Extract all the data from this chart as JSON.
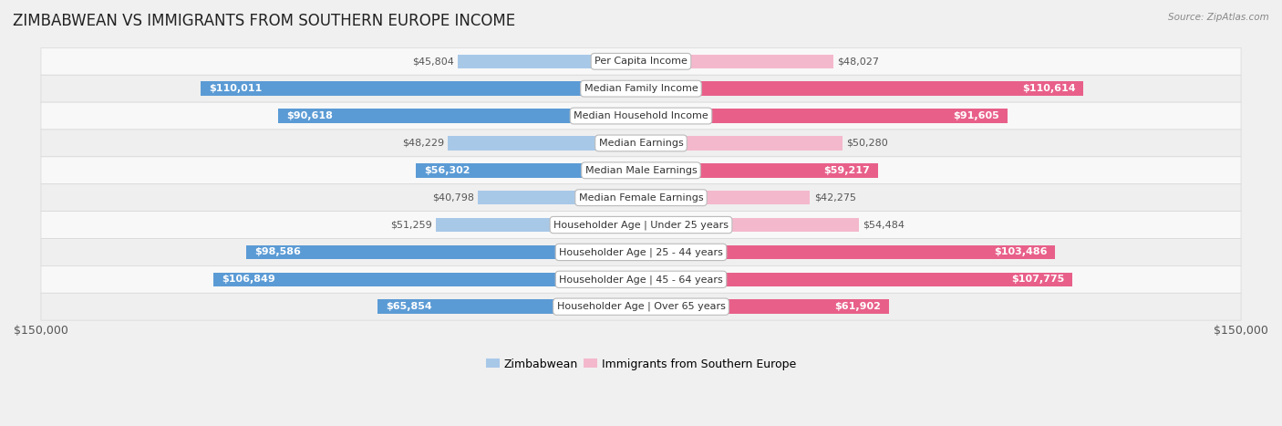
{
  "title": "ZIMBABWEAN VS IMMIGRANTS FROM SOUTHERN EUROPE INCOME",
  "source": "Source: ZipAtlas.com",
  "categories": [
    "Per Capita Income",
    "Median Family Income",
    "Median Household Income",
    "Median Earnings",
    "Median Male Earnings",
    "Median Female Earnings",
    "Householder Age | Under 25 years",
    "Householder Age | 25 - 44 years",
    "Householder Age | 45 - 64 years",
    "Householder Age | Over 65 years"
  ],
  "zimbabwean_values": [
    45804,
    110011,
    90618,
    48229,
    56302,
    40798,
    51259,
    98586,
    106849,
    65854
  ],
  "immigrant_values": [
    48027,
    110614,
    91605,
    50280,
    59217,
    42275,
    54484,
    103486,
    107775,
    61902
  ],
  "zimbabwean_labels": [
    "$45,804",
    "$110,011",
    "$90,618",
    "$48,229",
    "$56,302",
    "$40,798",
    "$51,259",
    "$98,586",
    "$106,849",
    "$65,854"
  ],
  "immigrant_labels": [
    "$48,027",
    "$110,614",
    "$91,605",
    "$50,280",
    "$59,217",
    "$42,275",
    "$54,484",
    "$103,486",
    "$107,775",
    "$61,902"
  ],
  "zimbabwean_color_light": "#a8c8e8",
  "zimbabwean_color_dark": "#5b9bd5",
  "immigrant_color_light": "#f4b8cc",
  "immigrant_color_dark": "#e8608a",
  "bar_height": 0.52,
  "max_value": 150000,
  "row_colors": [
    "#f8f8f8",
    "#efefef"
  ],
  "title_fontsize": 12,
  "label_fontsize": 8,
  "cat_fontsize": 8,
  "axis_fontsize": 9,
  "legend_fontsize": 9,
  "inside_label_threshold": 55000
}
